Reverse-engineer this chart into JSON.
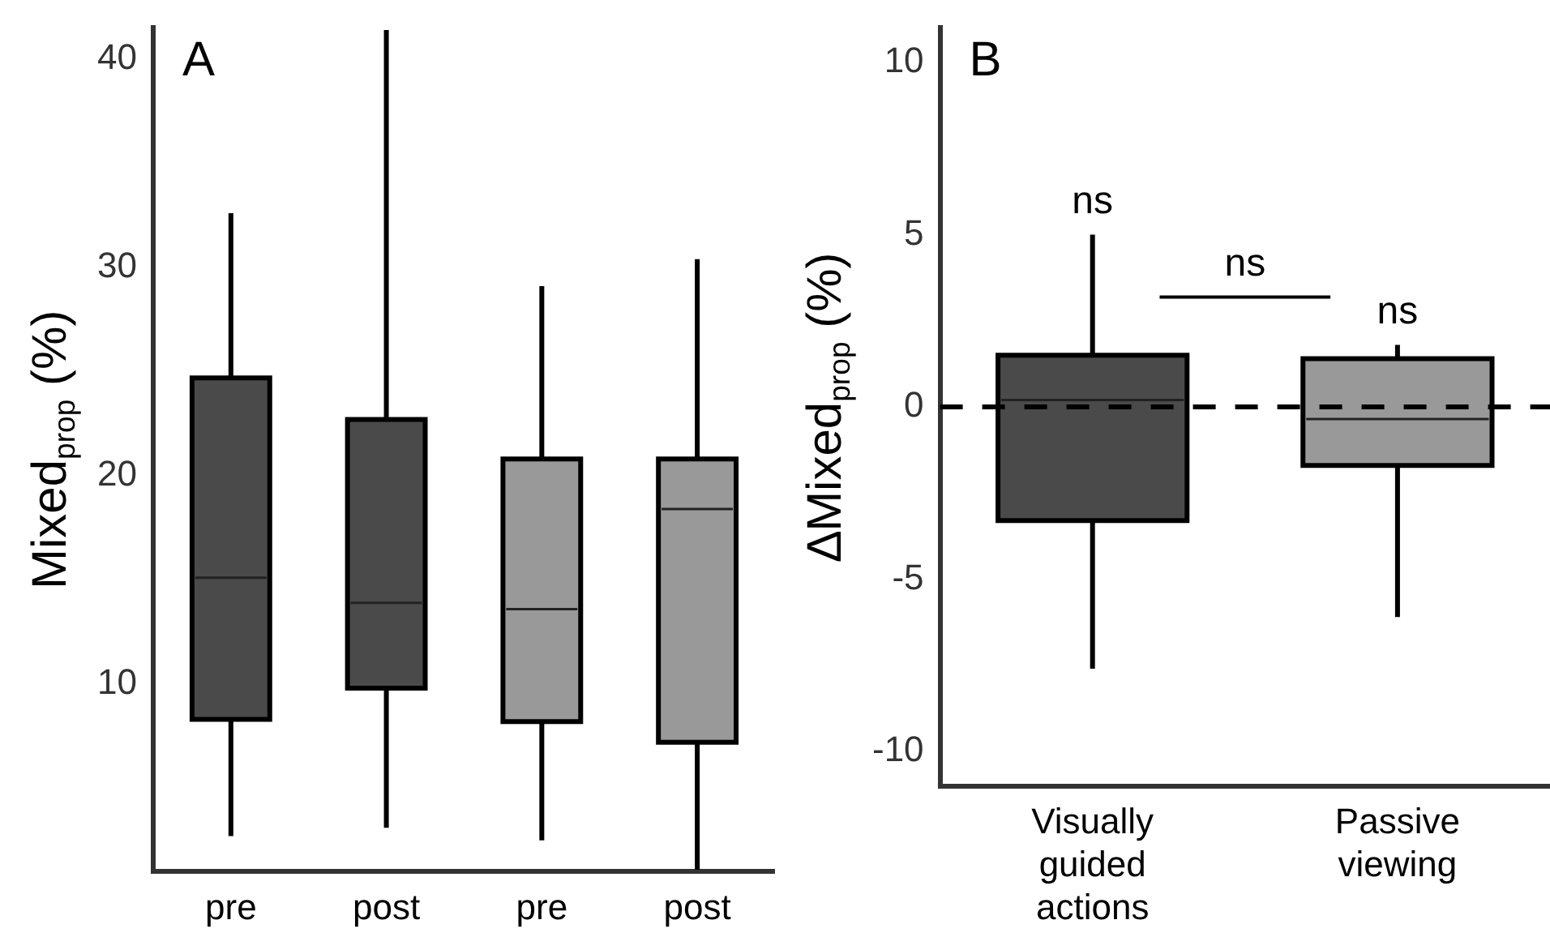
{
  "chart_data": [
    {
      "type": "box",
      "title": "A",
      "ylabel": "Mixed$_{prop}$ (%)",
      "categories": [
        "pre",
        "post",
        "pre",
        "post"
      ],
      "boxes": [
        {
          "low": 2.7,
          "q1": 8.3,
          "median": 15.1,
          "q3": 24.7,
          "high": 32.6
        },
        {
          "low": 3.1,
          "q1": 9.8,
          "median": 13.9,
          "q3": 22.7,
          "high": 41.4
        },
        {
          "low": 2.5,
          "q1": 8.2,
          "median": 13.6,
          "q3": 20.8,
          "high": 29.1
        },
        {
          "low": 1.1,
          "q1": 7.2,
          "median": 18.4,
          "q3": 20.8,
          "high": 30.4
        }
      ],
      "colors": [
        "#4a4a4a",
        "#4a4a4a",
        "#999999",
        "#999999"
      ],
      "ylim": [
        1,
        41.5
      ],
      "yticks": [
        10,
        20,
        30,
        40
      ]
    },
    {
      "type": "box",
      "title": "B",
      "ylabel": "∆Mixed$_{prop}$ (%)",
      "categories": [
        "Visually guided actions",
        "Passive viewing"
      ],
      "boxes": [
        {
          "low": -7.6,
          "q1": -3.3,
          "median": 0.2,
          "q3": 1.5,
          "high": 5
        },
        {
          "low": -6.1,
          "q1": -1.7,
          "median": -0.35,
          "q3": 1.4,
          "high": 1.8
        }
      ],
      "colors": [
        "#4a4a4a",
        "#999999"
      ],
      "ylim": [
        -11,
        11
      ],
      "yticks": [
        -10,
        -5,
        0,
        5,
        10
      ],
      "ref_lines": [
        {
          "axis": "y",
          "value": 0,
          "color": "#000000",
          "line_style": "dashed"
        }
      ],
      "annotations": [
        {
          "text": "ns",
          "x": "Visually guided actions",
          "y": 5
        },
        {
          "text": "ns",
          "x": "Passive viewing",
          "y": 1.8
        },
        "ns"
      ]
    }
  ]
}
